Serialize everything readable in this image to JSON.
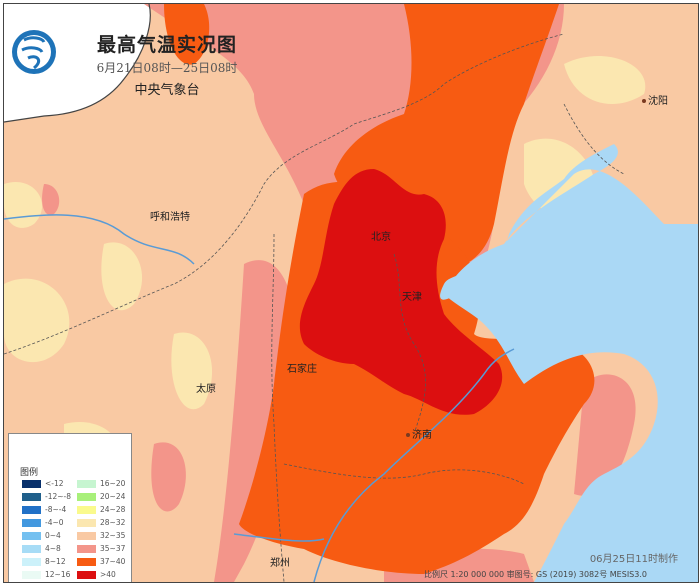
{
  "title": "最高气温实况图",
  "period": "6月21日08时—25日08时",
  "agency": "中央气象台",
  "logo": {
    "icon": "cma-logo",
    "color": "#1e73b8"
  },
  "cities": [
    {
      "id": "shenyang",
      "name": "沈阳"
    },
    {
      "id": "hohhot",
      "name": "呼和浩特"
    },
    {
      "id": "beijing",
      "name": "北京"
    },
    {
      "id": "tianjin",
      "name": "天津"
    },
    {
      "id": "shijiazhuang",
      "name": "石家庄"
    },
    {
      "id": "taiyuan",
      "name": "太原"
    },
    {
      "id": "jinan",
      "name": "济南"
    },
    {
      "id": "zhengzhou",
      "name": "郑州"
    }
  ],
  "legend": {
    "title": "图例",
    "items": [
      {
        "label": "<-12",
        "color": "#08306b"
      },
      {
        "label": "-12~-8",
        "color": "#1f5f8b"
      },
      {
        "label": "-8~-4",
        "color": "#2171c7"
      },
      {
        "label": "-4~0",
        "color": "#4298df"
      },
      {
        "label": "0~4",
        "color": "#74c0f0"
      },
      {
        "label": "4~8",
        "color": "#a7dcf6"
      },
      {
        "label": "8~12",
        "color": "#ccf1fa"
      },
      {
        "label": "12~16",
        "color": "#eafaf4"
      },
      {
        "label": "16~20",
        "color": "#c6f5d0"
      },
      {
        "label": "20~24",
        "color": "#a8f07a"
      },
      {
        "label": "24~28",
        "color": "#fafa8c"
      },
      {
        "label": "28~32",
        "color": "#fbe7b0"
      },
      {
        "label": "32~35",
        "color": "#f9c9a3"
      },
      {
        "label": "35~37",
        "color": "#f3958a"
      },
      {
        "label": "37~40",
        "color": "#f75b12"
      },
      {
        "label": ">40",
        "color": "#dc0f10"
      }
    ]
  },
  "made_time": "06月25日11时制作",
  "footer": "比例尺 1:20 000 000 审图号: GS (2019) 3082号 MESIS3.0",
  "colors": {
    "sea": "#aad8f5",
    "outside": "#ffffff",
    "boundary": "#555555",
    "river": "#5a9bd5"
  }
}
